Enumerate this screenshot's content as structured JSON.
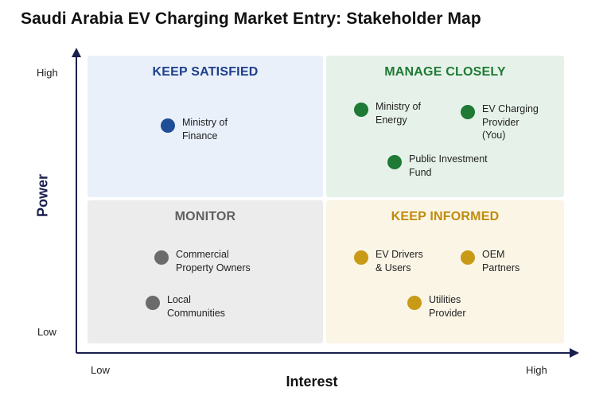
{
  "title": "Saudi Arabia EV Charging Market Entry: Stakeholder Map",
  "axes": {
    "y_label": "Power",
    "x_label": "Interest",
    "y_high": "High",
    "y_low": "Low",
    "x_low": "Low",
    "x_high": "High"
  },
  "colors": {
    "keep_satisfied": "#1f4e96",
    "manage_closely": "#1e7a34",
    "monitor": "#6b6b6b",
    "keep_informed": "#c99a16"
  },
  "quadrants": {
    "keep_satisfied": {
      "title": "KEEP SATISFIED",
      "stakeholders": [
        {
          "name": "Ministry of\nFinance"
        }
      ]
    },
    "manage_closely": {
      "title": "MANAGE CLOSELY",
      "stakeholders": [
        {
          "name": "Ministry of\nEnergy"
        },
        {
          "name": "EV Charging\nProvider\n(You)"
        },
        {
          "name": "Public Investment\nFund"
        }
      ]
    },
    "monitor": {
      "title": "MONITOR",
      "stakeholders": [
        {
          "name": "Commercial\nProperty Owners"
        },
        {
          "name": "Local\nCommunities"
        }
      ]
    },
    "keep_informed": {
      "title": "KEEP INFORMED",
      "stakeholders": [
        {
          "name": "EV Drivers\n& Users"
        },
        {
          "name": "OEM\nPartners"
        },
        {
          "name": "Utilities\nProvider"
        }
      ]
    }
  }
}
